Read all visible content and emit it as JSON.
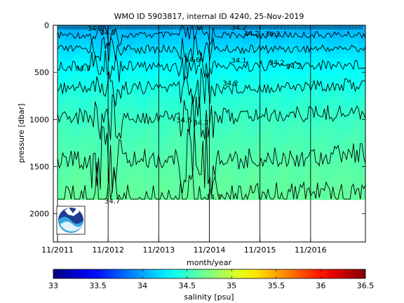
{
  "chart_data": {
    "type": "heatmap",
    "title": "WMO ID 5903817, internal ID 4240, 25-Nov-2019",
    "xlabel": "month/year",
    "ylabel": "pressure [dbar]",
    "x_ticks": [
      "11/2011",
      "11/2012",
      "11/2013",
      "11/2014",
      "11/2015",
      "11/2016"
    ],
    "x_range": [
      "2011-10",
      "2017-12"
    ],
    "y_ticks": [
      0,
      500,
      1000,
      1500,
      2000
    ],
    "ylim": [
      2300,
      0
    ],
    "y_reversed": true,
    "profile_max_pressure": 1850,
    "colorbar": {
      "label": "salinity [psu]",
      "min": 33,
      "max": 36.5,
      "ticks": [
        "33",
        "33.5",
        "34",
        "34.5",
        "35",
        "35.5",
        "36",
        "36.5"
      ],
      "colormap": "jet"
    },
    "contour_levels": [
      34.1,
      34.2,
      34.3,
      34.4,
      34.5,
      34.6,
      34.7
    ],
    "contour_labels": [
      {
        "text": "34.2",
        "date": "2012-08",
        "pressure": 60
      },
      {
        "text": "34.2",
        "date": "2012-11",
        "pressure": 100
      },
      {
        "text": "34.3",
        "date": "2012-05",
        "pressure": 480
      },
      {
        "text": "34.2",
        "date": "2015-06",
        "pressure": 50
      },
      {
        "text": "34.2",
        "date": "2015-09",
        "pressure": 110
      },
      {
        "text": "34.2",
        "date": "2016-02",
        "pressure": 120
      },
      {
        "text": "34.1",
        "date": "2015-06",
        "pressure": 400
      },
      {
        "text": "34.2",
        "date": "2016-03",
        "pressure": 420
      },
      {
        "text": "34.2",
        "date": "2016-07",
        "pressure": 460
      },
      {
        "text": "34.2",
        "date": "2015-04",
        "pressure": 640
      },
      {
        "text": "34.6",
        "date": "2014-07",
        "pressure": 390
      },
      {
        "text": "34.6",
        "date": "2014-05",
        "pressure": 1030
      },
      {
        "text": "34.7",
        "date": "2014-09",
        "pressure": 1060
      },
      {
        "text": "34.7",
        "date": "2012-12",
        "pressure": 1890
      },
      {
        "text": "34.7",
        "date": "2014-12",
        "pressure": 1850
      }
    ],
    "vertical_lines": [
      "2011-11",
      "2012-11",
      "2013-11",
      "2014-11",
      "2015-11",
      "2016-11"
    ],
    "logo": "noaa-logo"
  },
  "colors": {
    "jet_stops": [
      "#00008f",
      "#0000ff",
      "#00ffff",
      "#ffff00",
      "#ff0000",
      "#800000"
    ],
    "contour": "#000000",
    "background": "#ffffff"
  }
}
